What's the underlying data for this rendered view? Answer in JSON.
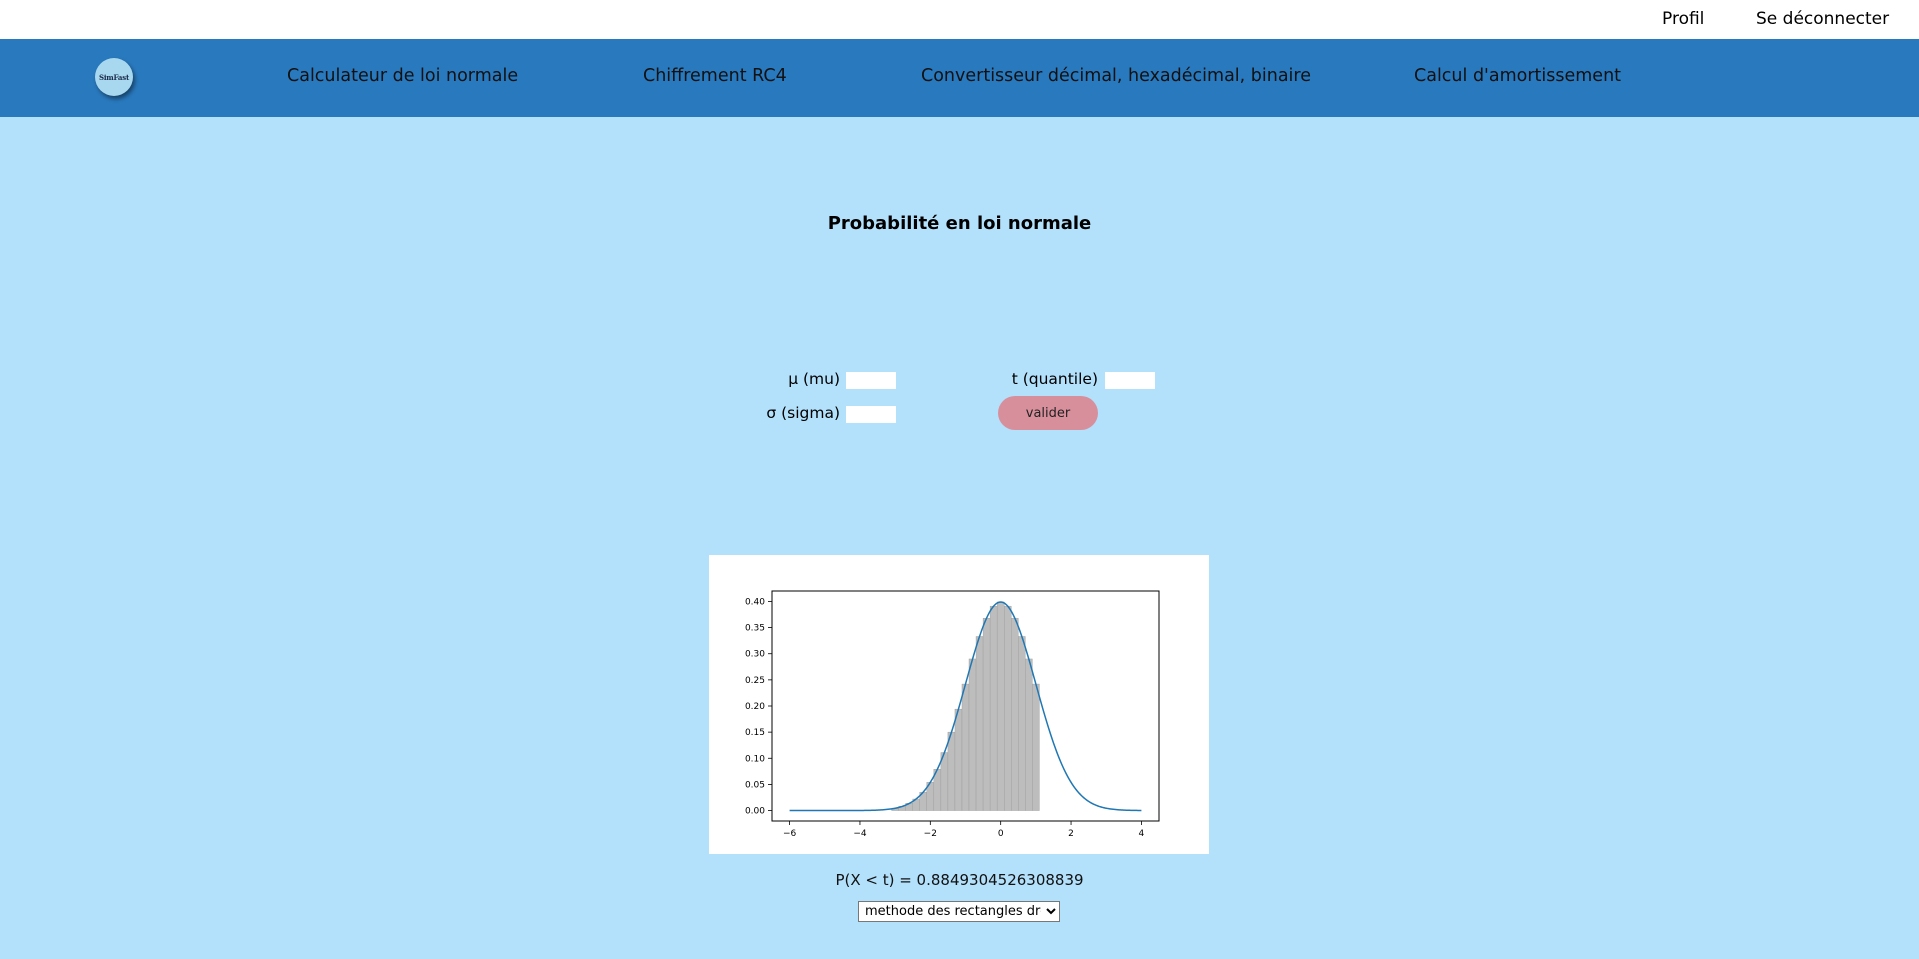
{
  "header": {
    "profile_label": "Profil",
    "logout_label": "Se déconnecter"
  },
  "nav": {
    "logo_text": "SimFast",
    "items": [
      {
        "label": "Calculateur de loi normale"
      },
      {
        "label": "Chiffrement RC4"
      },
      {
        "label": "Convertisseur décimal, hexadécimal, binaire"
      },
      {
        "label": "Calcul d'amortissement"
      }
    ]
  },
  "main": {
    "title": "Probabilité en loi normale",
    "form": {
      "mu_label": "μ (mu)",
      "mu_value": "",
      "sigma_label": "σ (sigma)",
      "sigma_value": "",
      "t_label": "t (quantile)",
      "t_value": "",
      "submit_label": "valider"
    },
    "result_text": "P(X < t) = 0.8849304526308839",
    "method": {
      "selected": "methode des rectangles droits"
    }
  },
  "colors": {
    "page_bg": "#b3e0fb",
    "navbar_bg": "#2979be",
    "button_bg": "#d88f9c",
    "curve": "#1f77b4",
    "bars": "#bdbdbd"
  },
  "chart_data": {
    "type": "bar",
    "title": "",
    "xlabel": "",
    "ylabel": "",
    "xlim": [
      -6.5,
      4.5
    ],
    "ylim": [
      -0.02,
      0.42
    ],
    "x_ticks": [
      -6,
      -4,
      -2,
      0,
      2,
      4
    ],
    "y_ticks": [
      0.0,
      0.05,
      0.1,
      0.15,
      0.2,
      0.25,
      0.3,
      0.35,
      0.4
    ],
    "x_tick_labels": [
      "−6",
      "−4",
      "−2",
      "0",
      "2",
      "4"
    ],
    "y_tick_labels": [
      "0.00",
      "0.05",
      "0.10",
      "0.15",
      "0.20",
      "0.25",
      "0.30",
      "0.35",
      "0.40"
    ],
    "grid": false,
    "series": [
      {
        "type": "bar",
        "x": [
          -3.0,
          -2.8,
          -2.6,
          -2.4,
          -2.2,
          -2.0,
          -1.8,
          -1.6,
          -1.4,
          -1.2,
          -1.0,
          -0.8,
          -0.6,
          -0.4,
          -0.2,
          0.0,
          0.2,
          0.4,
          0.6,
          0.8,
          1.0
        ],
        "values": [
          0.004,
          0.008,
          0.014,
          0.022,
          0.035,
          0.054,
          0.079,
          0.111,
          0.15,
          0.194,
          0.242,
          0.29,
          0.333,
          0.368,
          0.391,
          0.399,
          0.391,
          0.368,
          0.333,
          0.29,
          0.242
        ],
        "bar_width": 0.2
      },
      {
        "type": "line",
        "function": "normal_pdf",
        "mu": 0,
        "sigma": 1,
        "x_range": [
          -6,
          4
        ]
      }
    ]
  }
}
